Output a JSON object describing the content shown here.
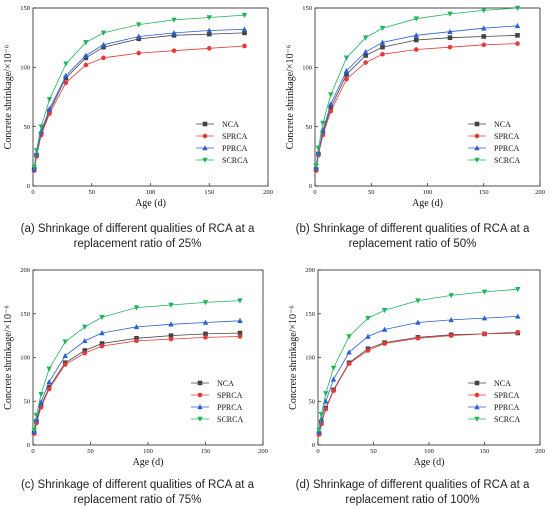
{
  "chart_data": [
    {
      "type": "line",
      "caption": "(a) Shrinkage of different qualities of RCA at a replacement ratio of 25%",
      "xlabel": "Age (d)",
      "ylabel": "Concrete shrinkage/×10⁻⁶",
      "xlim": [
        0,
        200
      ],
      "ylim": [
        0,
        150
      ],
      "xticks": [
        0,
        50,
        100,
        150,
        200
      ],
      "yticks": [
        0,
        50,
        100,
        150
      ],
      "legend": "bottom-right",
      "grid": false,
      "x": [
        1,
        3,
        7,
        14,
        28,
        45,
        60,
        90,
        120,
        150,
        180
      ],
      "series": [
        {
          "name": "NCA",
          "color": "#444444",
          "marker": "square",
          "values": [
            14,
            26,
            44,
            63,
            91,
            108,
            117,
            124,
            127,
            128,
            129
          ]
        },
        {
          "name": "SPRCA",
          "color": "#e8393a",
          "marker": "circle",
          "values": [
            13,
            25,
            43,
            61,
            87,
            102,
            108,
            112,
            114,
            116,
            118
          ]
        },
        {
          "name": "PPRCA",
          "color": "#2a5fd6",
          "marker": "triangle",
          "values": [
            14,
            27,
            46,
            65,
            93,
            110,
            119,
            126,
            129,
            131,
            132
          ]
        },
        {
          "name": "SCRCA",
          "color": "#21b35c",
          "marker": "tri-down",
          "values": [
            16,
            30,
            50,
            73,
            103,
            121,
            129,
            136,
            140,
            142,
            144
          ]
        }
      ]
    },
    {
      "type": "line",
      "caption": "(b) Shrinkage of different qualities of RCA at a replacement ratio of 50%",
      "xlabel": "Age (d)",
      "ylabel": "Concrete shrinkage/×10⁻⁶",
      "xlim": [
        0,
        200
      ],
      "ylim": [
        0,
        150
      ],
      "xticks": [
        0,
        50,
        100,
        150,
        200
      ],
      "yticks": [
        0,
        50,
        100,
        150
      ],
      "legend": "bottom-right",
      "grid": false,
      "x": [
        1,
        3,
        7,
        14,
        28,
        45,
        60,
        90,
        120,
        150,
        180
      ],
      "series": [
        {
          "name": "NCA",
          "color": "#444444",
          "marker": "square",
          "values": [
            14,
            27,
            45,
            66,
            94,
            110,
            117,
            123,
            125,
            126,
            127
          ]
        },
        {
          "name": "SPRCA",
          "color": "#e8393a",
          "marker": "circle",
          "values": [
            13,
            26,
            43,
            63,
            90,
            104,
            111,
            115,
            117,
            119,
            120
          ]
        },
        {
          "name": "PPRCA",
          "color": "#2a5fd6",
          "marker": "triangle",
          "values": [
            15,
            28,
            47,
            69,
            97,
            113,
            121,
            127,
            130,
            133,
            135
          ]
        },
        {
          "name": "SCRCA",
          "color": "#21b35c",
          "marker": "tri-down",
          "values": [
            17,
            32,
            53,
            77,
            108,
            125,
            133,
            141,
            145,
            148,
            150
          ]
        }
      ]
    },
    {
      "type": "line",
      "caption": "(c) Shrinkage of different qualities of RCA at a replacement ratio of 75%",
      "xlabel": "Age (d)",
      "ylabel": "Concrete shrinkage/×10⁻⁶",
      "xlim": [
        0,
        200
      ],
      "ylim": [
        0,
        200
      ],
      "xticks": [
        0,
        50,
        100,
        150,
        200
      ],
      "yticks": [
        0,
        50,
        100,
        150,
        200
      ],
      "legend": "bottom-right",
      "grid": false,
      "x": [
        1,
        3,
        7,
        14,
        28,
        45,
        60,
        90,
        120,
        150,
        180
      ],
      "series": [
        {
          "name": "NCA",
          "color": "#444444",
          "marker": "square",
          "values": [
            14,
            27,
            45,
            66,
            94,
            108,
            116,
            122,
            125,
            127,
            128
          ]
        },
        {
          "name": "SPRCA",
          "color": "#e8393a",
          "marker": "circle",
          "values": [
            13,
            25,
            43,
            64,
            92,
            105,
            113,
            119,
            121,
            123,
            124
          ]
        },
        {
          "name": "PPRCA",
          "color": "#2a5fd6",
          "marker": "triangle",
          "values": [
            15,
            29,
            49,
            72,
            102,
            119,
            128,
            135,
            138,
            140,
            142
          ]
        },
        {
          "name": "SCRCA",
          "color": "#21b35c",
          "marker": "tri-down",
          "values": [
            17,
            34,
            58,
            87,
            118,
            135,
            146,
            157,
            160,
            163,
            165
          ]
        }
      ]
    },
    {
      "type": "line",
      "caption": "(d) Shrinkage of different qualities of RCA at a replacement ratio of 100%",
      "xlabel": "Age (d)",
      "ylabel": "Concrete shrinkage/×10⁻⁶",
      "xlim": [
        0,
        200
      ],
      "ylim": [
        0,
        200
      ],
      "xticks": [
        0,
        50,
        100,
        150,
        200
      ],
      "yticks": [
        0,
        50,
        100,
        150,
        200
      ],
      "legend": "bottom-right",
      "grid": false,
      "x": [
        1,
        3,
        7,
        14,
        28,
        45,
        60,
        90,
        120,
        150,
        180
      ],
      "series": [
        {
          "name": "NCA",
          "color": "#444444",
          "marker": "square",
          "values": [
            13,
            25,
            42,
            63,
            94,
            110,
            117,
            123,
            126,
            127,
            128
          ]
        },
        {
          "name": "SPRCA",
          "color": "#e8393a",
          "marker": "circle",
          "values": [
            12,
            24,
            41,
            62,
            93,
            108,
            116,
            122,
            125,
            127,
            129
          ]
        },
        {
          "name": "PPRCA",
          "color": "#2a5fd6",
          "marker": "triangle",
          "values": [
            15,
            30,
            50,
            75,
            106,
            124,
            132,
            140,
            143,
            145,
            147
          ]
        },
        {
          "name": "SCRCA",
          "color": "#21b35c",
          "marker": "tri-down",
          "values": [
            17,
            35,
            59,
            88,
            124,
            145,
            154,
            165,
            171,
            175,
            178
          ]
        }
      ]
    }
  ]
}
